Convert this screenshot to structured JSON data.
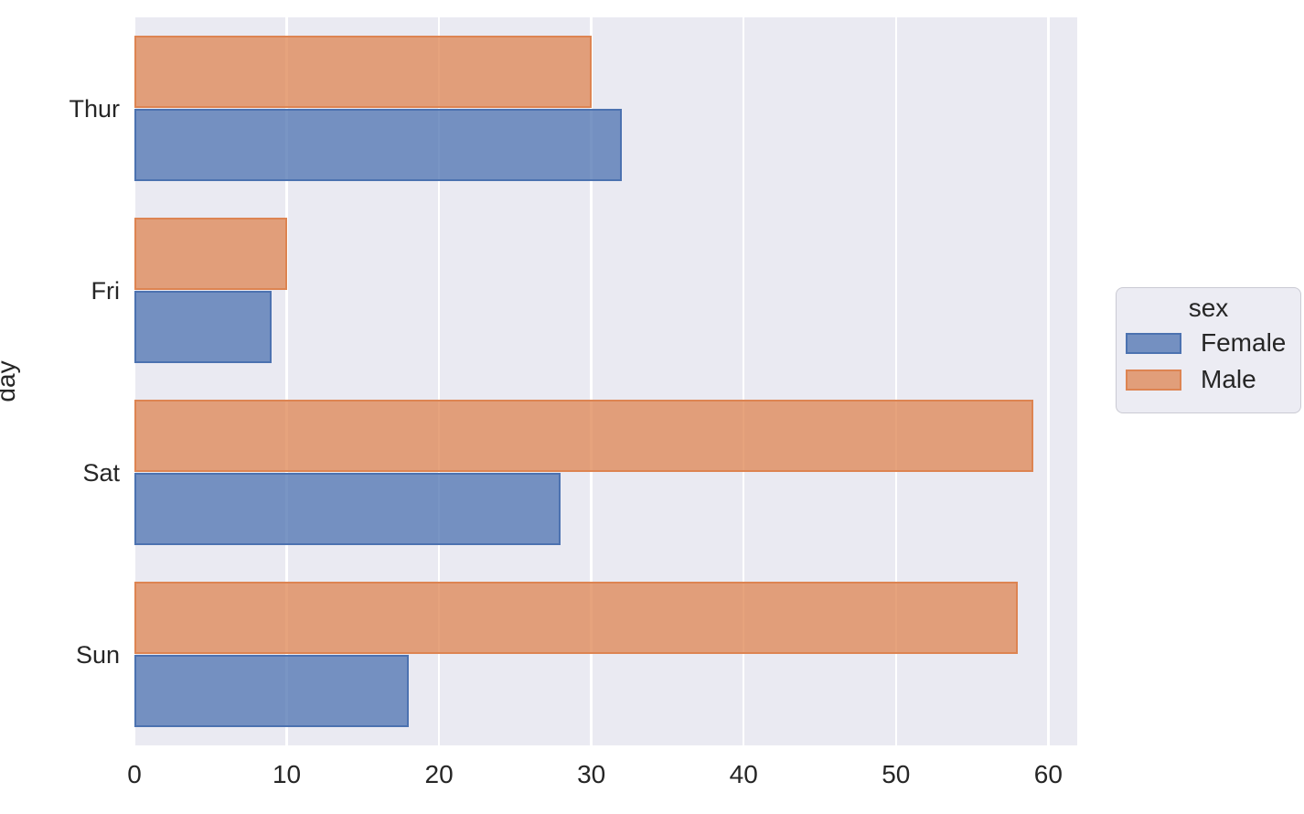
{
  "figure": {
    "background_color": "#ffffff",
    "plot_background_color": "#eaeaf2",
    "grid_color": "#ffffff",
    "text_color": "#262626"
  },
  "chart_data": {
    "type": "bar",
    "orientation": "horizontal",
    "title": "",
    "xlabel": "",
    "ylabel": "day",
    "categories": [
      "Thur",
      "Fri",
      "Sat",
      "Sun"
    ],
    "series": [
      {
        "name": "Female",
        "values": [
          32,
          9,
          28,
          18
        ],
        "face_color": "rgba(76,114,176,0.75)",
        "edge_color": "#4c72b0"
      },
      {
        "name": "Male",
        "values": [
          30,
          10,
          59,
          58
        ],
        "face_color": "rgba(221,132,82,0.75)",
        "edge_color": "#dd8452"
      }
    ],
    "row_order_within_group": [
      "Male",
      "Female"
    ],
    "xlim": [
      0,
      61.9
    ],
    "xticks": [
      0,
      10,
      20,
      30,
      40,
      50,
      60
    ],
    "grid": true,
    "legend": {
      "title": "sex",
      "entries": [
        "Female",
        "Male"
      ],
      "position": "center right"
    }
  }
}
